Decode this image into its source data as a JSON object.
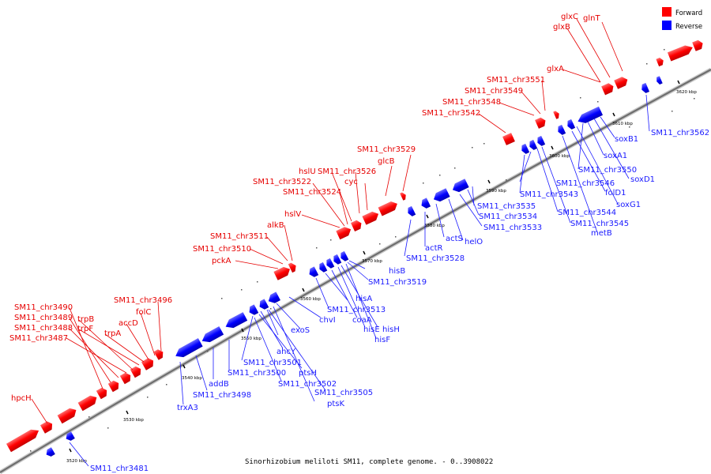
{
  "caption": "Sinorhizobium meliloti SM11, complete genome. - 0..3908022",
  "legend": [
    {
      "label": "Forward",
      "color": "#ff0000"
    },
    {
      "label": "Reverse",
      "color": "#0000ff"
    }
  ],
  "ticks": [
    "3520 kbp",
    "3530 kbp",
    "3540 kbp",
    "3550 kbp",
    "3560 kbp",
    "3570 kbp",
    "3580 kbp",
    "3590 kbp",
    "3600 kbp",
    "3610 kbp",
    "3620 kbp"
  ],
  "forward_labels": [
    "hpcH",
    "SM11_chr3490",
    "SM11_chr3489",
    "SM11_chr3488",
    "SM11_chr3487",
    "trpB",
    "trpF",
    "trpA",
    "accD",
    "folC",
    "SM11_chr3496",
    "pckA",
    "SM11_chr3510",
    "SM11_chr3511",
    "alkB",
    "hslV",
    "SM11_chr3524",
    "SM11_chr3522",
    "hslU",
    "SM11_chr3526",
    "cyc",
    "glcB",
    "SM11_chr3529",
    "SM11_chr3542",
    "SM11_chr3548",
    "SM11_chr3549",
    "SM11_chr3551",
    "glxA",
    "glxB",
    "glxC",
    "glnT"
  ],
  "reverse_labels": [
    "SM11_chr3481",
    "trxA3",
    "SM11_chr3498",
    "addB",
    "SM11_chr3500",
    "SM11_chr3501",
    "ahcY",
    "ptsH",
    "SM11_chr3502",
    "SM11_chr3505",
    "ptsK",
    "exoS",
    "chvI",
    "SM11_chr3513",
    "hisA",
    "coaA",
    "hisE",
    "hisH",
    "hisF",
    "SM11_chr3519",
    "hisB",
    "SM11_chr3528",
    "actR",
    "actS",
    "helO",
    "SM11_chr3533",
    "SM11_chr3534",
    "SM11_chr3535",
    "SM11_chr3543",
    "SM11_chr3544",
    "SM11_chr3545",
    "metB",
    "folD1",
    "SM11_chr3546",
    "SM11_chr3550",
    "soxA1",
    "soxG1",
    "soxD1",
    "soxB1",
    "SM11_chr3562"
  ]
}
